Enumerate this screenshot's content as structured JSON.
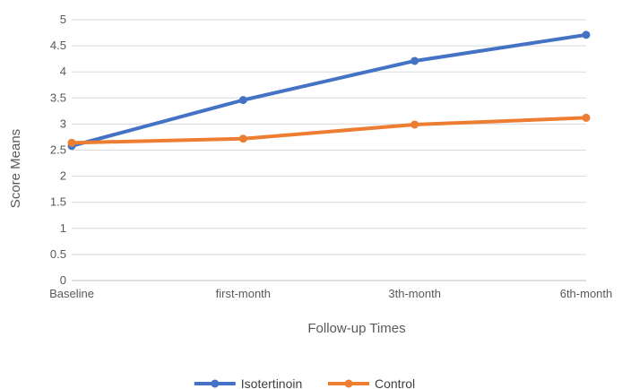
{
  "chart_data": {
    "type": "line",
    "title": "",
    "xlabel": "Follow-up Times",
    "ylabel": "Score Means",
    "categories": [
      "Baseline",
      "first-month",
      "3th-month",
      "6th-month"
    ],
    "ylim": [
      0,
      5
    ],
    "yticks": [
      "0",
      "0.5",
      "1",
      "1.5",
      "2",
      "2.5",
      "3",
      "3.5",
      "4",
      "4.5",
      "5"
    ],
    "grid": true,
    "legend_position": "bottom",
    "series": [
      {
        "name": "Isotertinoin",
        "color": "#4472C4",
        "values": [
          2.58,
          3.46,
          4.21,
          4.71
        ]
      },
      {
        "name": "Control",
        "color": "#ED7D31",
        "values": [
          2.64,
          2.72,
          2.99,
          3.12
        ]
      }
    ]
  }
}
